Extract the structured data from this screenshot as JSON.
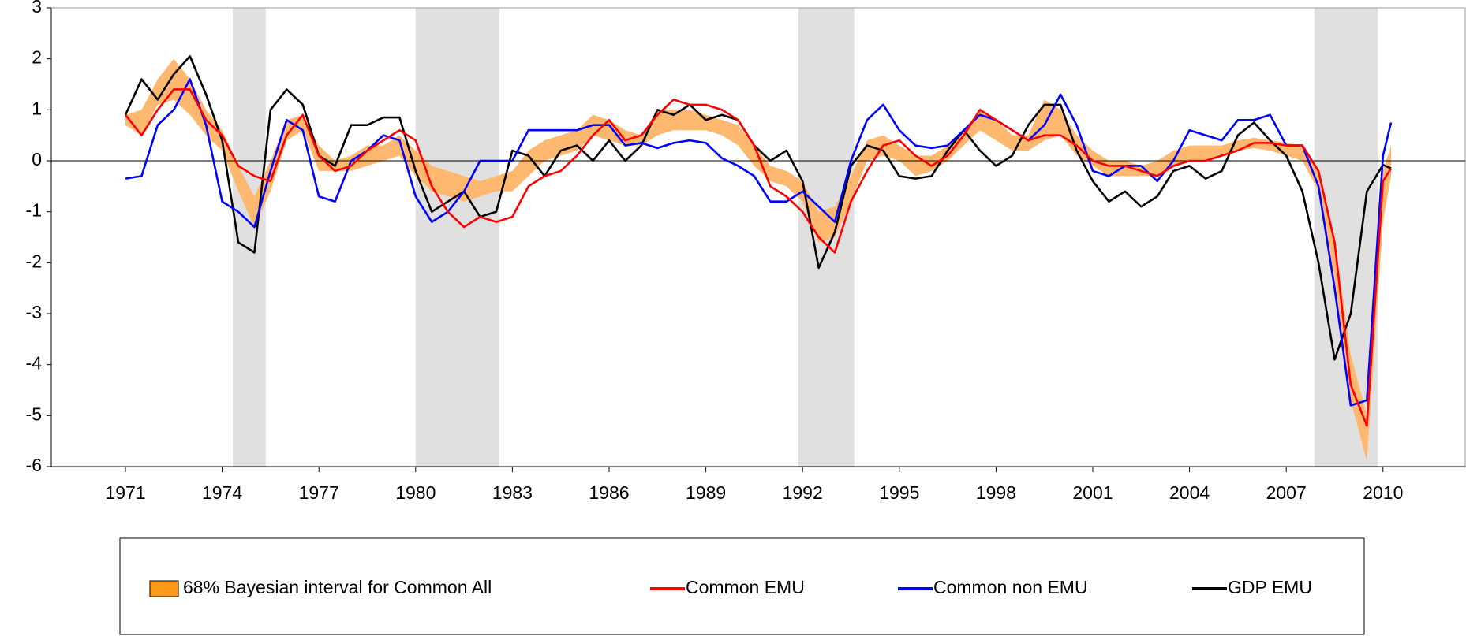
{
  "chart_data": {
    "type": "line",
    "x": [
      1971,
      1971.5,
      1972,
      1972.5,
      1973,
      1973.5,
      1974,
      1974.5,
      1975,
      1975.5,
      1976,
      1976.5,
      1977,
      1977.5,
      1978,
      1978.5,
      1979,
      1979.5,
      1980,
      1980.5,
      1981,
      1981.5,
      1982,
      1982.5,
      1983,
      1983.5,
      1984,
      1984.5,
      1985,
      1985.5,
      1986,
      1986.5,
      1987,
      1987.5,
      1988,
      1988.5,
      1989,
      1989.5,
      1990,
      1990.5,
      1991,
      1991.5,
      1992,
      1992.5,
      1993,
      1993.5,
      1994,
      1994.5,
      1995,
      1995.5,
      1996,
      1996.5,
      1997,
      1997.5,
      1998,
      1998.5,
      1999,
      1999.5,
      2000,
      2000.5,
      2001,
      2001.5,
      2002,
      2002.5,
      2003,
      2003.5,
      2004,
      2004.5,
      2005,
      2005.5,
      2006,
      2006.5,
      2007,
      2007.5,
      2008,
      2008.5,
      2009,
      2009.5,
      2010,
      2010.25
    ],
    "band": {
      "name": "68% Bayesian interval for Common All",
      "color": "#ffb870",
      "legend_color": "#ff9a1a",
      "lower": [
        0.7,
        0.5,
        1.1,
        1.2,
        0.9,
        0.5,
        0.2,
        -0.6,
        -1.3,
        -0.6,
        0.4,
        0.6,
        -0.2,
        -0.2,
        -0.2,
        -0.1,
        0.0,
        0.1,
        -0.3,
        -0.6,
        -0.7,
        -0.8,
        -0.7,
        -0.6,
        -0.6,
        -0.3,
        0.0,
        0.1,
        0.2,
        0.5,
        0.4,
        0.3,
        0.3,
        0.5,
        0.6,
        0.6,
        0.6,
        0.5,
        0.3,
        -0.1,
        -0.4,
        -0.5,
        -0.8,
        -1.6,
        -1.5,
        -0.8,
        0.0,
        0.1,
        0.0,
        -0.3,
        -0.2,
        0.0,
        0.3,
        0.6,
        0.4,
        0.2,
        0.2,
        0.4,
        0.5,
        0.1,
        -0.1,
        -0.3,
        -0.3,
        -0.3,
        -0.3,
        -0.1,
        0.0,
        0.0,
        0.1,
        0.2,
        0.25,
        0.2,
        0.1,
        0.0,
        -0.6,
        -2.5,
        -4.7,
        -5.9,
        -1.2,
        -0.3
      ],
      "upper": [
        0.9,
        1.0,
        1.6,
        2.0,
        1.6,
        1.0,
        0.6,
        -0.1,
        -0.7,
        0.0,
        0.8,
        0.9,
        0.3,
        0.0,
        0.1,
        0.3,
        0.3,
        0.5,
        0.2,
        -0.1,
        -0.2,
        -0.3,
        -0.4,
        -0.3,
        -0.2,
        0.2,
        0.4,
        0.5,
        0.6,
        0.9,
        0.8,
        0.6,
        0.5,
        1.0,
        1.0,
        1.0,
        0.9,
        0.8,
        0.7,
        0.3,
        -0.1,
        -0.2,
        -0.4,
        -1.0,
        -0.9,
        -0.3,
        0.4,
        0.5,
        0.3,
        0.1,
        0.1,
        0.3,
        0.6,
        1.0,
        0.8,
        0.5,
        0.5,
        1.2,
        1.0,
        0.5,
        0.2,
        0.0,
        0.0,
        -0.1,
        0.0,
        0.2,
        0.3,
        0.3,
        0.3,
        0.4,
        0.45,
        0.4,
        0.35,
        0.3,
        -0.2,
        -1.5,
        -3.8,
        -5.0,
        -0.2,
        0.3
      ]
    },
    "series": [
      {
        "name": "Common EMU",
        "color": "#ff0000",
        "values": [
          0.9,
          0.5,
          1.0,
          1.4,
          1.4,
          0.8,
          0.5,
          -0.1,
          -0.3,
          -0.4,
          0.5,
          0.9,
          0.1,
          -0.2,
          -0.1,
          0.2,
          0.4,
          0.6,
          0.4,
          -0.5,
          -1.0,
          -1.3,
          -1.1,
          -1.2,
          -1.1,
          -0.5,
          -0.3,
          -0.2,
          0.1,
          0.5,
          0.8,
          0.4,
          0.5,
          0.9,
          1.2,
          1.1,
          1.1,
          1.0,
          0.8,
          0.3,
          -0.5,
          -0.7,
          -1.0,
          -1.5,
          -1.8,
          -0.8,
          -0.2,
          0.3,
          0.4,
          0.1,
          -0.1,
          0.1,
          0.5,
          1.0,
          0.8,
          0.6,
          0.4,
          0.5,
          0.5,
          0.3,
          0.0,
          -0.1,
          -0.1,
          -0.2,
          -0.3,
          -0.1,
          0.0,
          0.0,
          0.1,
          0.2,
          0.35,
          0.35,
          0.3,
          0.3,
          -0.2,
          -1.6,
          -4.4,
          -5.2,
          -0.4,
          -0.15
        ]
      },
      {
        "name": "Common non EMU",
        "color": "#0000ff",
        "values": [
          -0.35,
          -0.3,
          0.7,
          1.0,
          1.6,
          0.7,
          -0.8,
          -1.0,
          -1.3,
          -0.2,
          0.8,
          0.6,
          -0.7,
          -0.8,
          0.0,
          0.2,
          0.5,
          0.4,
          -0.7,
          -1.2,
          -1.0,
          -0.6,
          0.0,
          0.0,
          0.0,
          0.6,
          0.6,
          0.6,
          0.6,
          0.7,
          0.7,
          0.3,
          0.35,
          0.25,
          0.35,
          0.4,
          0.35,
          0.05,
          -0.1,
          -0.3,
          -0.8,
          -0.8,
          -0.6,
          -0.9,
          -1.2,
          0.0,
          0.8,
          1.1,
          0.6,
          0.3,
          0.25,
          0.3,
          0.6,
          0.9,
          0.8,
          0.6,
          0.4,
          0.7,
          1.3,
          0.7,
          -0.2,
          -0.3,
          -0.1,
          -0.1,
          -0.4,
          0.0,
          0.6,
          0.5,
          0.4,
          0.8,
          0.8,
          0.9,
          0.3,
          0.3,
          -0.5,
          -2.5,
          -4.8,
          -4.7,
          0.1,
          0.75
        ]
      },
      {
        "name": "GDP EMU",
        "color": "#000000",
        "values": [
          0.9,
          1.6,
          1.2,
          1.7,
          2.05,
          1.3,
          0.4,
          -1.6,
          -1.8,
          1.0,
          1.4,
          1.1,
          0.1,
          -0.1,
          0.7,
          0.7,
          0.85,
          0.85,
          -0.2,
          -1.0,
          -0.8,
          -0.6,
          -1.1,
          -1.0,
          0.2,
          0.1,
          -0.3,
          0.2,
          0.3,
          0.0,
          0.4,
          0.0,
          0.3,
          1.0,
          0.9,
          1.1,
          0.8,
          0.9,
          0.8,
          0.3,
          0.0,
          0.2,
          -0.4,
          -2.1,
          -1.4,
          -0.1,
          0.3,
          0.2,
          -0.3,
          -0.35,
          -0.3,
          0.2,
          0.6,
          0.2,
          -0.1,
          0.1,
          0.7,
          1.1,
          1.1,
          0.2,
          -0.4,
          -0.8,
          -0.6,
          -0.9,
          -0.7,
          -0.2,
          -0.1,
          -0.35,
          -0.2,
          0.5,
          0.75,
          0.4,
          0.1,
          -0.6,
          -2.0,
          -3.9,
          -3.0,
          -0.6,
          -0.08,
          -0.15
        ]
      }
    ],
    "shaded_periods": [
      [
        1974.33,
        1975.35
      ],
      [
        1980.0,
        1982.6
      ],
      [
        1991.87,
        1993.6
      ],
      [
        2007.87,
        2009.84
      ]
    ],
    "shade_color": "#e0e0e0",
    "xlim": [
      1968.7,
      2012.55
    ],
    "xticks": [
      1971,
      1974,
      1977,
      1980,
      1983,
      1986,
      1989,
      1992,
      1995,
      1998,
      2001,
      2004,
      2007,
      2010
    ],
    "ylim": [
      -6,
      3
    ],
    "yticks": [
      -6,
      -5,
      -4,
      -3,
      -2,
      -1,
      0,
      1,
      2,
      3
    ],
    "zero_line": true
  }
}
